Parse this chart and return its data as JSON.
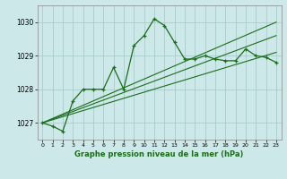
{
  "title": "Graphe pression niveau de la mer (hPa)",
  "bg_color": "#cce8e8",
  "grid_color": "#aacccc",
  "line_color": "#1a6e1a",
  "xlim": [
    -0.5,
    23.5
  ],
  "ylim": [
    1026.5,
    1030.5
  ],
  "yticks": [
    1027,
    1028,
    1029,
    1030
  ],
  "xticks": [
    0,
    1,
    2,
    3,
    4,
    5,
    6,
    7,
    8,
    9,
    10,
    11,
    12,
    13,
    14,
    15,
    16,
    17,
    18,
    19,
    20,
    21,
    22,
    23
  ],
  "main_line_x": [
    0,
    1,
    2,
    3,
    4,
    5,
    6,
    7,
    8,
    9,
    10,
    11,
    12,
    13,
    14,
    15,
    16,
    17,
    18,
    19,
    20,
    21,
    22,
    23
  ],
  "main_line_y": [
    1027.0,
    1026.9,
    1026.75,
    1027.65,
    1028.0,
    1028.0,
    1028.0,
    1028.65,
    1028.0,
    1029.3,
    1029.6,
    1030.1,
    1029.9,
    1029.4,
    1028.9,
    1028.9,
    1029.0,
    1028.9,
    1028.85,
    1028.85,
    1029.2,
    1029.0,
    1028.95,
    1028.8
  ],
  "trend_line1_x": [
    0,
    23
  ],
  "trend_line1_y": [
    1027.0,
    1030.0
  ],
  "trend_line2_x": [
    0,
    23
  ],
  "trend_line2_y": [
    1027.0,
    1029.6
  ],
  "trend_line3_x": [
    0,
    23
  ],
  "trend_line3_y": [
    1027.0,
    1029.1
  ]
}
